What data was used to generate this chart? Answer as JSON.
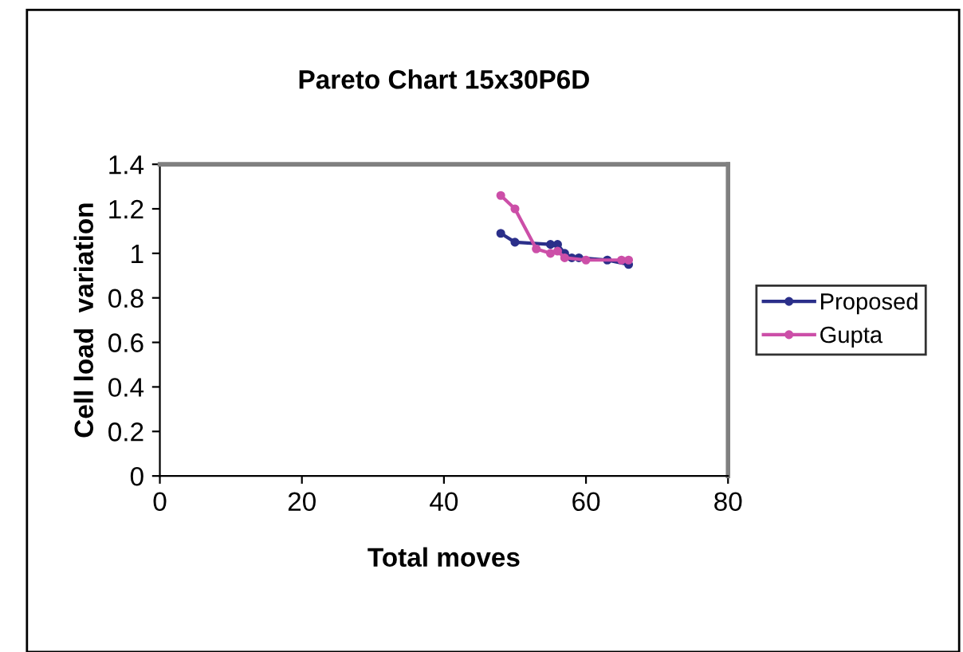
{
  "chart_data": {
    "type": "line",
    "title": "Pareto Chart 15x30P6D",
    "xlabel": "Total moves",
    "ylabel": "Cell load  variation",
    "series": [
      {
        "name": "Proposed",
        "color": "#2b2f8a",
        "x": [
          48,
          50,
          55,
          56,
          57,
          58,
          59,
          63,
          66
        ],
        "values": [
          1.09,
          1.05,
          1.04,
          1.04,
          1.0,
          0.98,
          0.98,
          0.97,
          0.95
        ]
      },
      {
        "name": "Gupta",
        "color": "#cc4fa8",
        "x": [
          48,
          50,
          53,
          55,
          56,
          57,
          60,
          65,
          66
        ],
        "values": [
          1.26,
          1.2,
          1.02,
          1.0,
          1.01,
          0.98,
          0.97,
          0.97,
          0.97
        ]
      }
    ],
    "xlim": [
      0,
      80
    ],
    "xticks": [
      0,
      20,
      40,
      60,
      80
    ],
    "ylim": [
      0,
      1.4
    ],
    "yticks": [
      0,
      0.2,
      0.4,
      0.6,
      0.8,
      1,
      1.2,
      1.4
    ],
    "legend": "right",
    "grid": false,
    "marker": "circle",
    "line_style": "solid"
  }
}
